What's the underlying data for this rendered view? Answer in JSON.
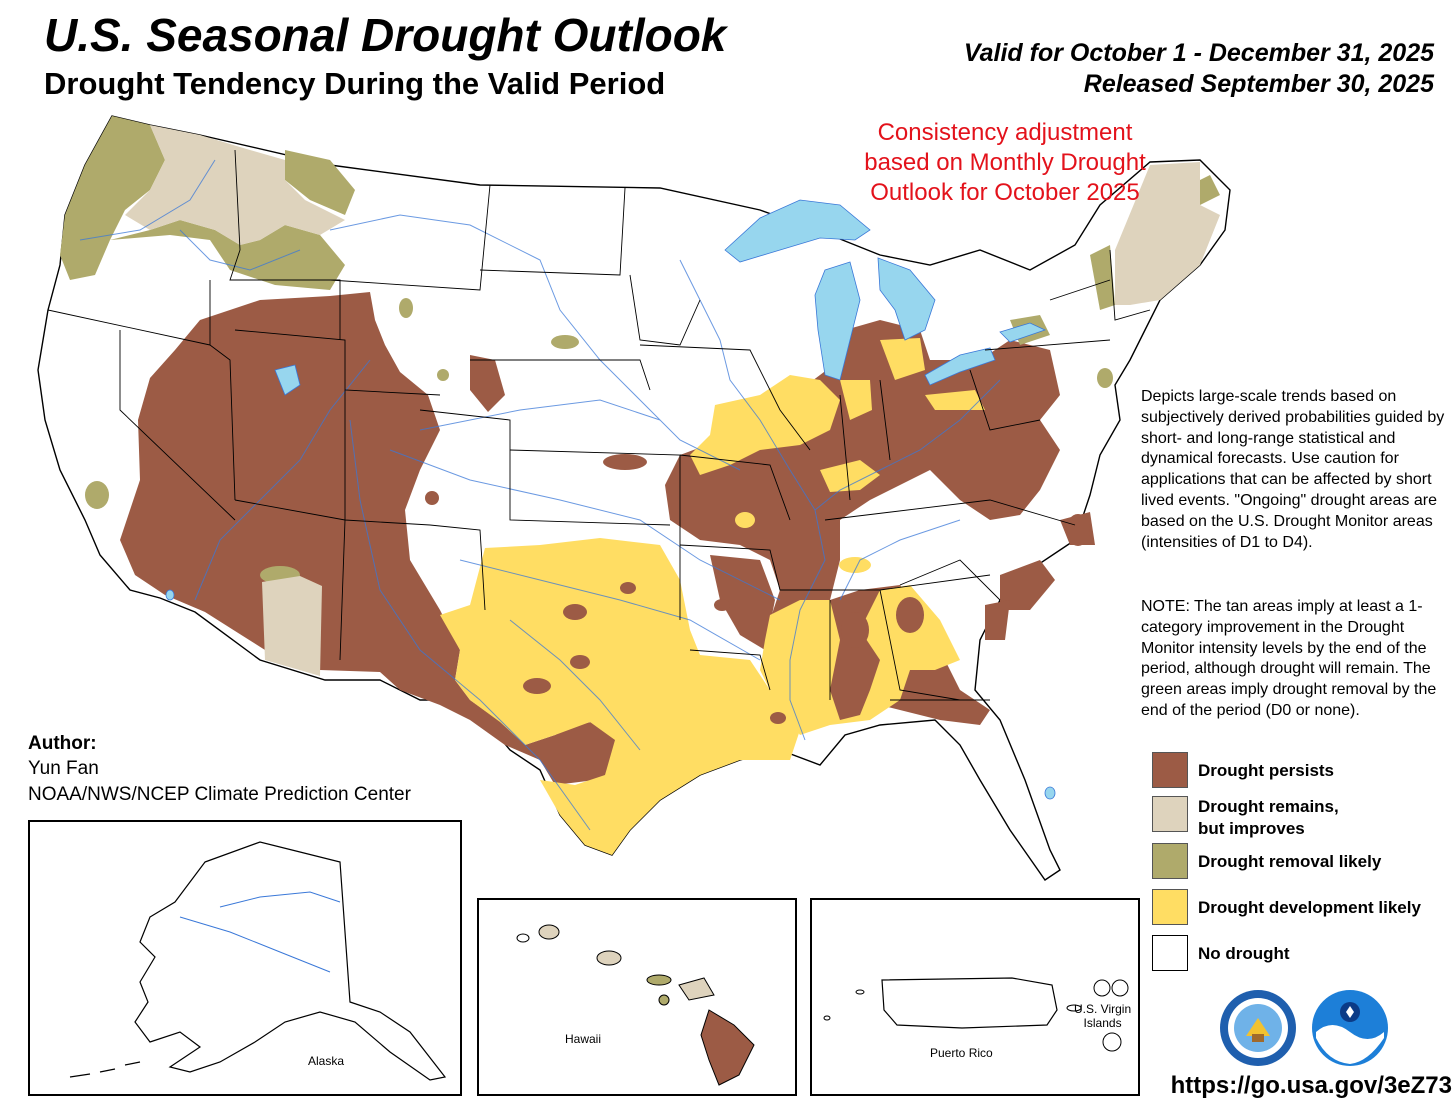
{
  "header": {
    "title": "U.S. Seasonal Drought Outlook",
    "subtitle": "Drought Tendency During the Valid Period",
    "valid_line": "Valid for October 1 - December 31, 2025",
    "released_line": "Released September 30, 2025"
  },
  "annotation": {
    "consistency_text": "Consistency adjustment based on Monthly Drought Outlook for October 2025"
  },
  "description": {
    "text": "Depicts large-scale trends based on subjectively derived probabilities guided by short- and long-range statistical and dynamical forecasts. Use caution for applications that can be affected by short lived events. \"Ongoing\" drought areas are based on the U.S. Drought Monitor areas (intensities of D1 to D4).",
    "note": "NOTE: The tan areas imply at least a 1-category improvement in the Drought Monitor intensity levels by the end of the period, although drought will remain. The green areas imply drought removal by the end of the period (D0 or none)."
  },
  "author": {
    "label": "Author:",
    "name": "Yun Fan",
    "org": "NOAA/NWS/NCEP Climate Prediction Center"
  },
  "legend": {
    "items": [
      {
        "line1": "Drought persists",
        "line2": "",
        "color": "#9c5b45"
      },
      {
        "line1": "Drought remains,",
        "line2": "but improves",
        "color": "#ded3bd"
      },
      {
        "line1": "Drought removal likely",
        "line2": "",
        "color": "#afaa6b"
      },
      {
        "line1": "Drought development likely",
        "line2": "",
        "color": "#ffdd63"
      },
      {
        "line1": "No drought",
        "line2": "",
        "color": "#ffffff"
      }
    ]
  },
  "insets": {
    "alaska": "Alaska",
    "hawaii": "Hawaii",
    "puerto_rico": "Puerto Rico",
    "virgin_islands_line1": "U.S. Virgin",
    "virgin_islands_line2": "Islands"
  },
  "footer": {
    "url": "https://go.usa.gov/3eZ73"
  },
  "colors": {
    "persists": "#9c5b45",
    "improves": "#ded3bd",
    "removal": "#afaa6b",
    "development": "#ffdd63",
    "water": "#97d6ee",
    "river": "#3a78d8",
    "consistency": "#e3121b"
  }
}
